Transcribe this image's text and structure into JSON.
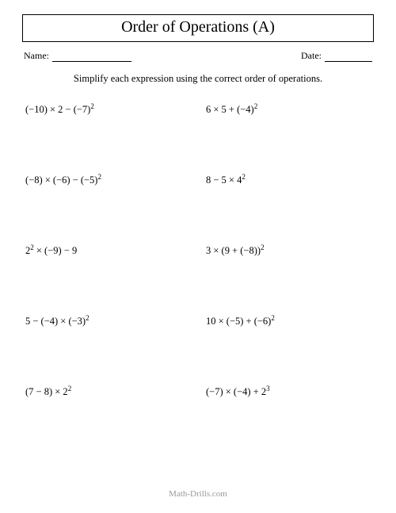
{
  "title": "Order of Operations (A)",
  "name_label": "Name:",
  "date_label": "Date:",
  "instructions": "Simplify each expression using the correct order of operations.",
  "problems": {
    "left": [
      "(−10) × 2 − (−7)<sup>2</sup>",
      "(−8) × (−6) − (−5)<sup>2</sup>",
      "2<sup>2</sup> × (−9) − 9",
      "5 − (−4) × (−3)<sup>2</sup>",
      "(7 − 8) × 2<sup>2</sup>"
    ],
    "right": [
      "6 × 5 + (−4)<sup>2</sup>",
      "8 − 5 × 4<sup>2</sup>",
      "3 × (9 + (−8))<sup>2</sup>",
      "10 × (−5) + (−6)<sup>2</sup>",
      "(−7) × (−4) + 2<sup>3</sup>"
    ]
  },
  "footer": "Math-Drills.com",
  "style": {
    "page_bg": "#ffffff",
    "text_color": "#000000",
    "footer_color": "#9a9a9a",
    "border_color": "#000000",
    "title_fontsize": 20,
    "body_fontsize": 12.5,
    "meta_fontsize": 12,
    "footer_fontsize": 11,
    "font_family": "Times New Roman"
  }
}
